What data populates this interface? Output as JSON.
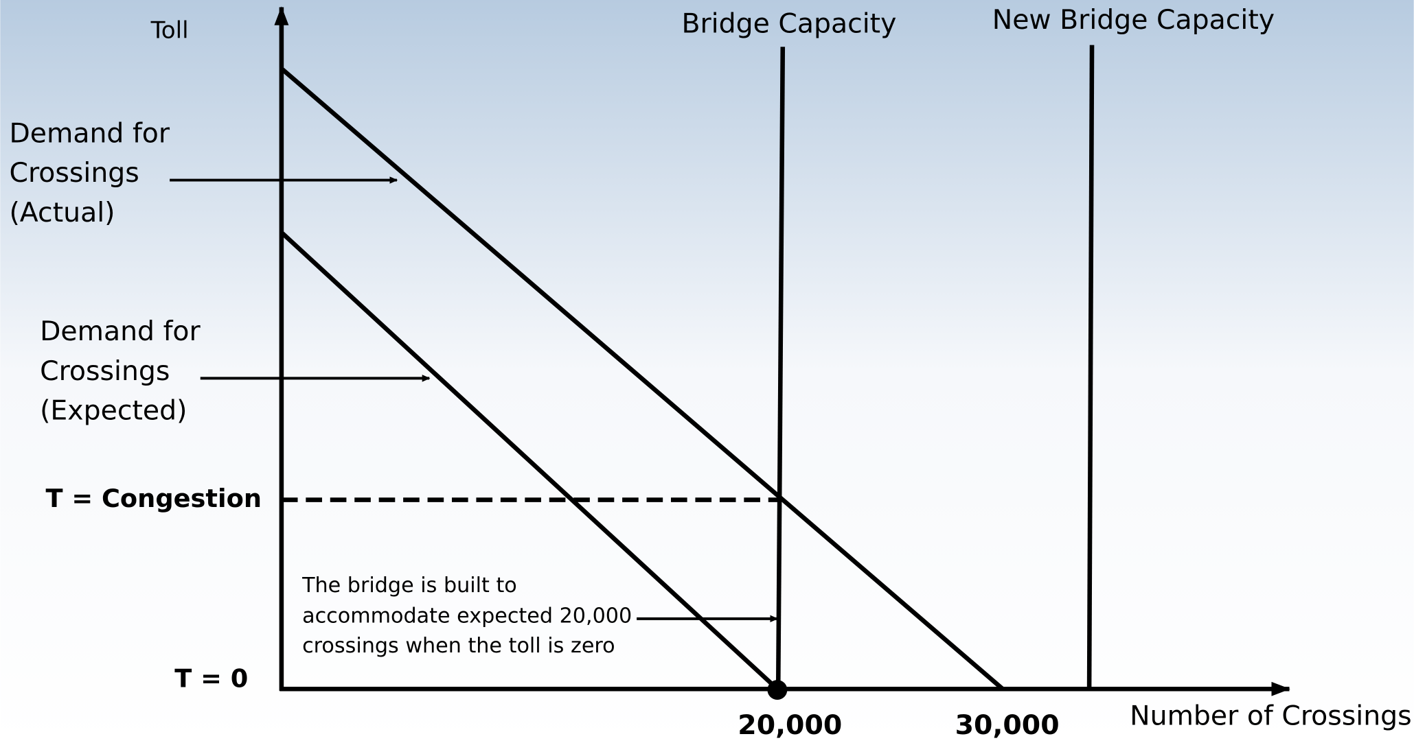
{
  "axes": {
    "y_label": "Toll",
    "x_label": "Number of Crossings"
  },
  "capacity_lines": {
    "bridge": "Bridge Capacity",
    "new_bridge": "New Bridge Capacity"
  },
  "demand_labels": {
    "actual": [
      "Demand for",
      "Crossings",
      "(Actual)"
    ],
    "expected": [
      "Demand for",
      "Crossings",
      "(Expected)"
    ]
  },
  "toll_labels": {
    "congestion": "T = Congestion",
    "zero": "T = 0"
  },
  "x_ticks": [
    "20,000",
    "30,000"
  ],
  "note": [
    "The bridge is built to",
    "accommodate expected 20,000",
    "crossings when the toll is zero"
  ]
}
